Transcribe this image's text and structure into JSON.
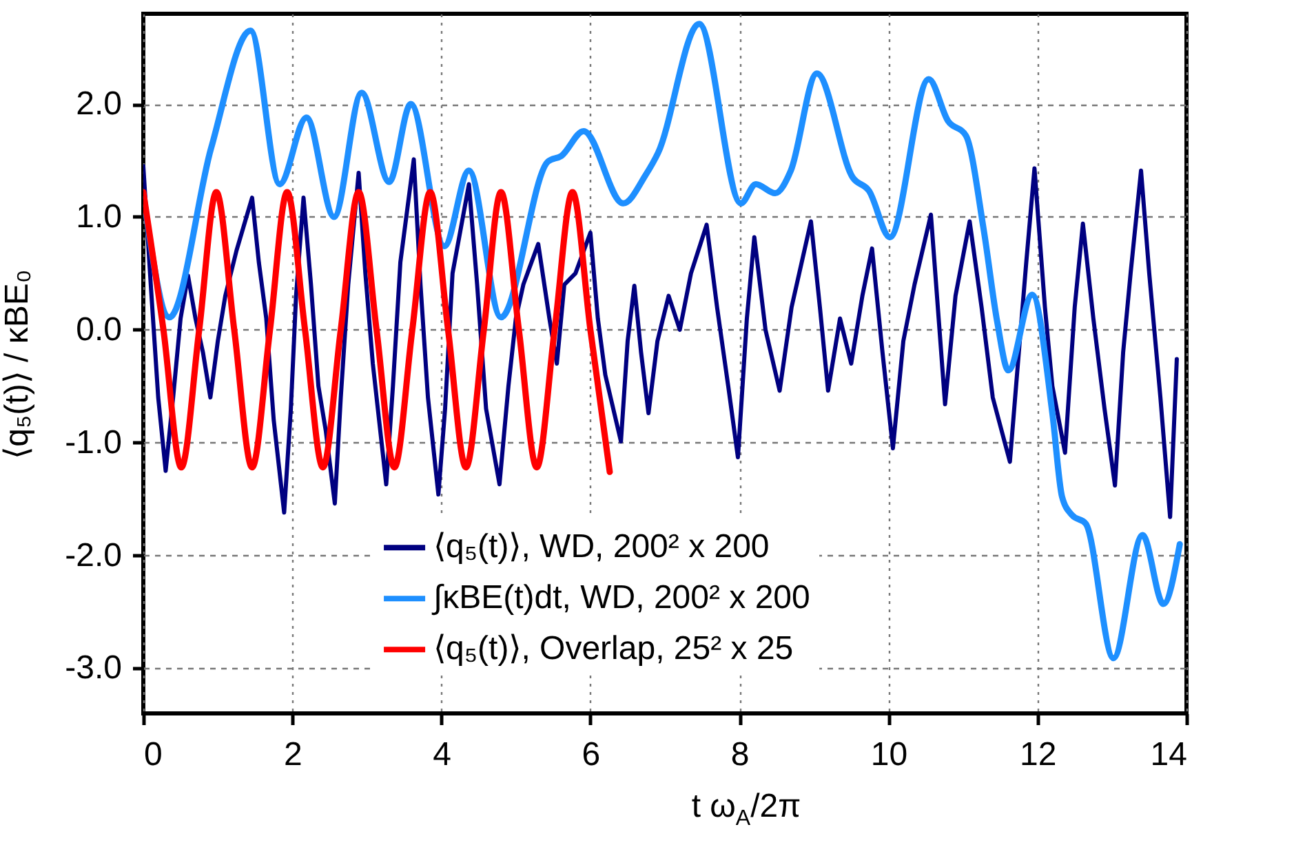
{
  "chart_data": {
    "type": "line",
    "xlabel": "t ω$_{A}$/2π",
    "ylabel": "⟨q₅(t)⟩ / κBE₀",
    "xlim": [
      0,
      14
    ],
    "xticks": [
      0,
      2,
      4,
      6,
      8,
      10,
      12,
      14
    ],
    "ylim": [
      -3.4,
      2.8
    ],
    "yticks": [
      {
        "value": -3,
        "label": "-3.0"
      },
      {
        "value": -2,
        "label": "-2.0"
      },
      {
        "value": -1,
        "label": "-1.0"
      },
      {
        "value": 0,
        "label": "0.0"
      },
      {
        "value": 1,
        "label": "1.0"
      },
      {
        "value": 2,
        "label": "2.0"
      }
    ],
    "grid": true,
    "legend": "bottom",
    "line_style": "solid",
    "series": [
      {
        "name": "⟨q₅(t)⟩, WD, 200² x 200",
        "color": "#000080",
        "x": [
          0,
          0.1,
          0.2,
          0.3,
          0.4,
          0.5,
          0.6,
          0.7,
          0.8,
          0.9,
          1.0,
          1.1,
          1.25,
          1.46,
          1.55,
          1.65,
          1.75,
          1.89,
          1.98,
          2.05,
          2.15,
          2.25,
          2.35,
          2.45,
          2.57,
          2.65,
          2.75,
          2.89,
          2.98,
          3.08,
          3.26,
          3.35,
          3.45,
          3.63,
          3.72,
          3.82,
          3.96,
          4.05,
          4.15,
          4.37,
          4.48,
          4.6,
          4.78,
          4.9,
          5.0,
          5.1,
          5.3,
          5.45,
          5.55,
          5.65,
          5.8,
          6.0,
          6.1,
          6.2,
          6.41,
          6.5,
          6.59,
          6.68,
          6.78,
          6.9,
          7.05,
          7.2,
          7.35,
          7.56,
          7.7,
          7.85,
          7.98,
          8.1,
          8.2,
          8.35,
          8.54,
          8.7,
          8.96,
          9.08,
          9.19,
          9.35,
          9.5,
          9.65,
          9.78,
          9.92,
          10.06,
          10.2,
          10.35,
          10.57,
          10.76,
          10.9,
          11.09,
          11.25,
          11.4,
          11.63,
          11.75,
          11.85,
          11.96,
          12.1,
          12.2,
          12.37,
          12.5,
          12.61,
          12.75,
          12.9,
          13.04,
          13.15,
          13.25,
          13.39,
          13.5,
          13.65,
          13.78,
          13.87
        ],
        "values": [
          1.45,
          0.4,
          -0.6,
          -1.25,
          -0.6,
          0.1,
          0.48,
          0.1,
          -0.2,
          -0.6,
          -0.1,
          0.3,
          0.7,
          1.17,
          0.6,
          0.1,
          -0.8,
          -1.62,
          -0.7,
          0.3,
          1.17,
          0.4,
          -0.5,
          -0.9,
          -1.54,
          -0.6,
          0.4,
          1.39,
          0.5,
          -0.3,
          -1.37,
          -0.5,
          0.6,
          1.51,
          0.4,
          -0.6,
          -1.46,
          -0.7,
          0.5,
          1.29,
          0.4,
          -0.7,
          -1.37,
          -0.5,
          0.1,
          0.4,
          0.76,
          0.1,
          -0.3,
          0.4,
          0.5,
          0.86,
          0.1,
          -0.4,
          -0.99,
          -0.1,
          0.39,
          -0.2,
          -0.74,
          -0.1,
          0.3,
          0.0,
          0.5,
          0.93,
          0.2,
          -0.5,
          -1.13,
          0.1,
          0.82,
          0.0,
          -0.54,
          0.2,
          0.96,
          0.2,
          -0.54,
          0.1,
          -0.3,
          0.3,
          0.72,
          -0.2,
          -1.05,
          -0.1,
          0.4,
          1.02,
          -0.66,
          0.3,
          0.96,
          0.2,
          -0.6,
          -1.17,
          -0.2,
          0.6,
          1.43,
          0.2,
          -0.5,
          -1.09,
          0.2,
          0.94,
          0.1,
          -0.7,
          -1.38,
          -0.2,
          0.5,
          1.41,
          0.5,
          -0.6,
          -1.66,
          -0.26
        ]
      },
      {
        "name": "∫κBE(t)dt, WD, 200² x 200",
        "color": "#1e8fff",
        "x": [
          0,
          0.35,
          0.91,
          1.44,
          1.83,
          2.19,
          2.56,
          2.93,
          3.3,
          3.59,
          4.04,
          4.37,
          4.8,
          5.43,
          5.61,
          5.91,
          6.44,
          6.74,
          6.91,
          7.46,
          8.02,
          8.22,
          8.48,
          8.69,
          9.04,
          9.52,
          9.74,
          10.02,
          10.54,
          10.8,
          11.04,
          11.28,
          11.46,
          11.61,
          11.93,
          12.2,
          12.33,
          12.46,
          12.65,
          13.02,
          13.41,
          13.69,
          13.91
        ],
        "values": [
          1.2,
          0.11,
          1.61,
          2.65,
          1.29,
          1.88,
          1.0,
          2.1,
          1.31,
          2.0,
          0.74,
          1.41,
          0.11,
          1.49,
          1.54,
          1.76,
          1.12,
          1.37,
          1.57,
          2.71,
          1.12,
          1.29,
          1.21,
          1.41,
          2.27,
          1.35,
          1.23,
          0.82,
          2.22,
          1.85,
          1.72,
          0.88,
          0.07,
          -0.36,
          0.31,
          -0.74,
          -1.48,
          -1.64,
          -1.72,
          -2.91,
          -1.82,
          -2.43,
          -1.9
        ]
      },
      {
        "name": "⟨q₅(t)⟩, Overlap, 25² x 25",
        "color": "#ff0000",
        "x": [
          0,
          0.27,
          0.51,
          0.75,
          0.98,
          1.22,
          1.46,
          1.7,
          1.93,
          2.17,
          2.41,
          2.65,
          2.89,
          3.13,
          3.37,
          3.61,
          3.85,
          4.09,
          4.33,
          4.57,
          4.8,
          5.04,
          5.28,
          5.52,
          5.76,
          6.0,
          6.26
        ],
        "values": [
          1.22,
          0,
          -1.22,
          0,
          1.22,
          0,
          -1.22,
          0,
          1.22,
          0,
          -1.22,
          0,
          1.22,
          0,
          -1.22,
          0,
          1.22,
          0,
          -1.22,
          0,
          1.22,
          0,
          -1.22,
          0,
          1.22,
          0,
          -1.26
        ]
      }
    ]
  }
}
